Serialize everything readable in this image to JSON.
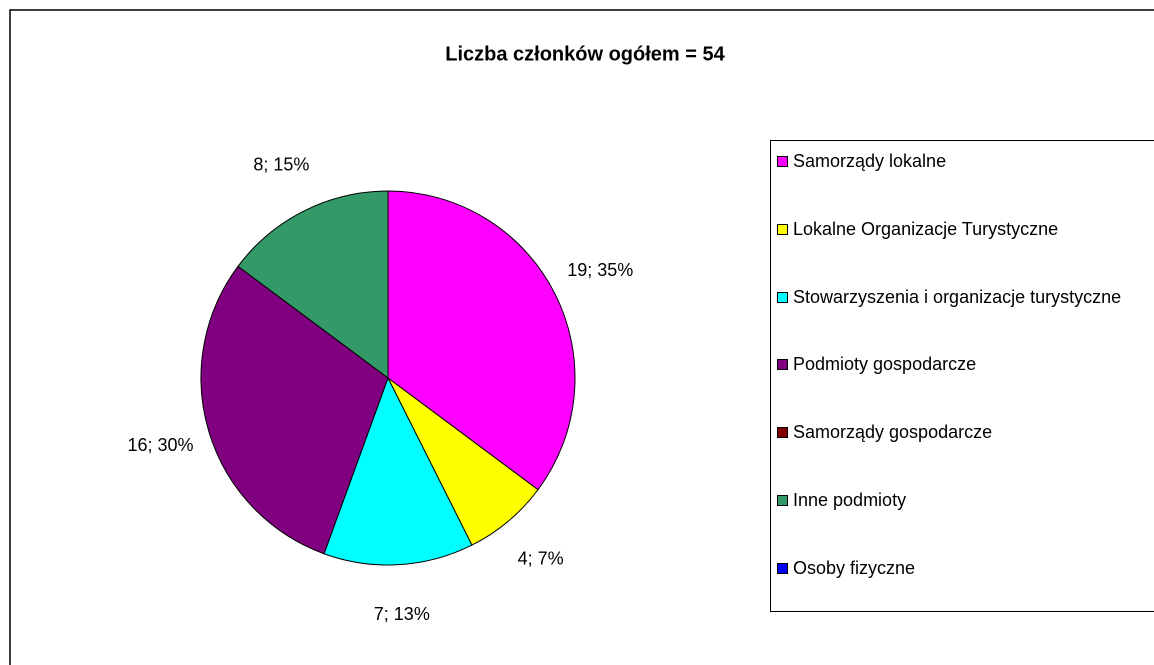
{
  "chart_data": {
    "type": "pie",
    "title": "Liczba członków ogółem = 54",
    "categories": [
      "Samorządy lokalne",
      "Lokalne Organizacje Turystyczne",
      "Stowarzyszenia i organizacje turystyczne",
      "Podmioty gospodarcze",
      "Samorządy gospodarcze",
      "Inne podmioty",
      "Osoby fizyczne"
    ],
    "values": [
      19,
      4,
      7,
      16,
      0,
      8,
      0
    ],
    "value_labels": [
      "19; 35%",
      "4; 7%",
      "7; 13%",
      "16; 30%",
      null,
      "8; 15%",
      null
    ],
    "colors": [
      "#ff00ff",
      "#ffff00",
      "#00ffff",
      "#800080",
      "#800000",
      "#339966",
      "#0000ff"
    ],
    "legend": "right"
  }
}
